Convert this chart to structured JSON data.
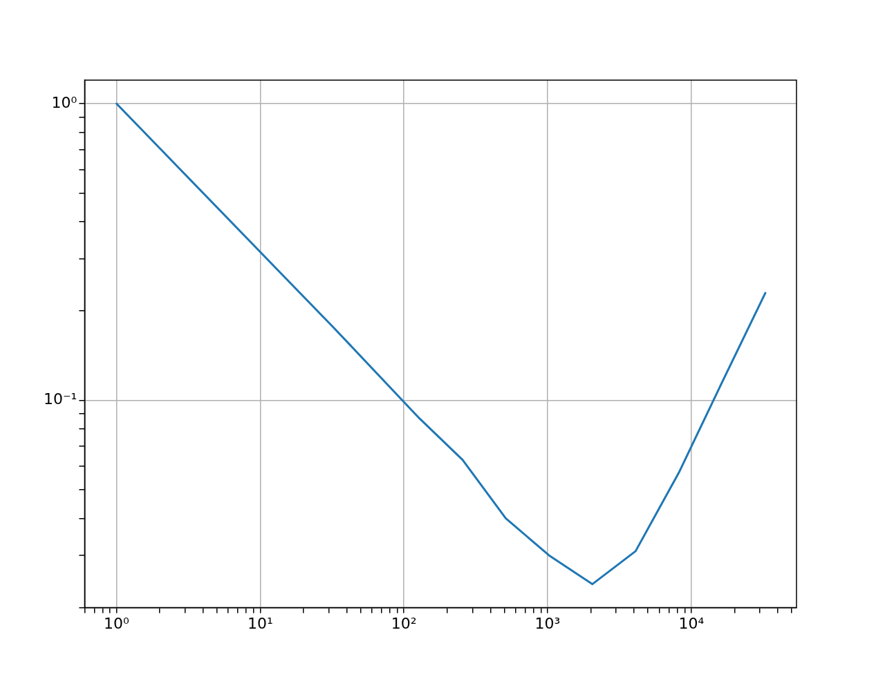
{
  "chart_data": {
    "type": "line",
    "log": "xy",
    "grid": true,
    "legend": false,
    "marker": "none",
    "line_style": "solid",
    "x": [
      1,
      16,
      32,
      128,
      256,
      512,
      1024,
      2048,
      4096,
      8192,
      16384,
      32768
    ],
    "series": [
      {
        "color": "#1f77b4",
        "values": [
          1,
          0.25,
          0.177,
          0.087,
          0.063,
          0.04,
          0.03,
          0.024,
          0.031,
          0.057,
          0.115,
          0.23
        ]
      }
    ],
    "xlim": [
      0.6,
      54000
    ],
    "ylim": [
      0.02,
      1.2
    ],
    "xticks": [
      {
        "value": 1,
        "label": "10⁰"
      },
      {
        "value": 10,
        "label": "10¹"
      },
      {
        "value": 100,
        "label": "10²"
      },
      {
        "value": 1000,
        "label": "10³"
      },
      {
        "value": 10000,
        "label": "10⁴"
      }
    ],
    "yticks": [
      {
        "value": 0.1,
        "label": "10⁻¹"
      },
      {
        "value": 1,
        "label": "10⁰"
      }
    ]
  }
}
